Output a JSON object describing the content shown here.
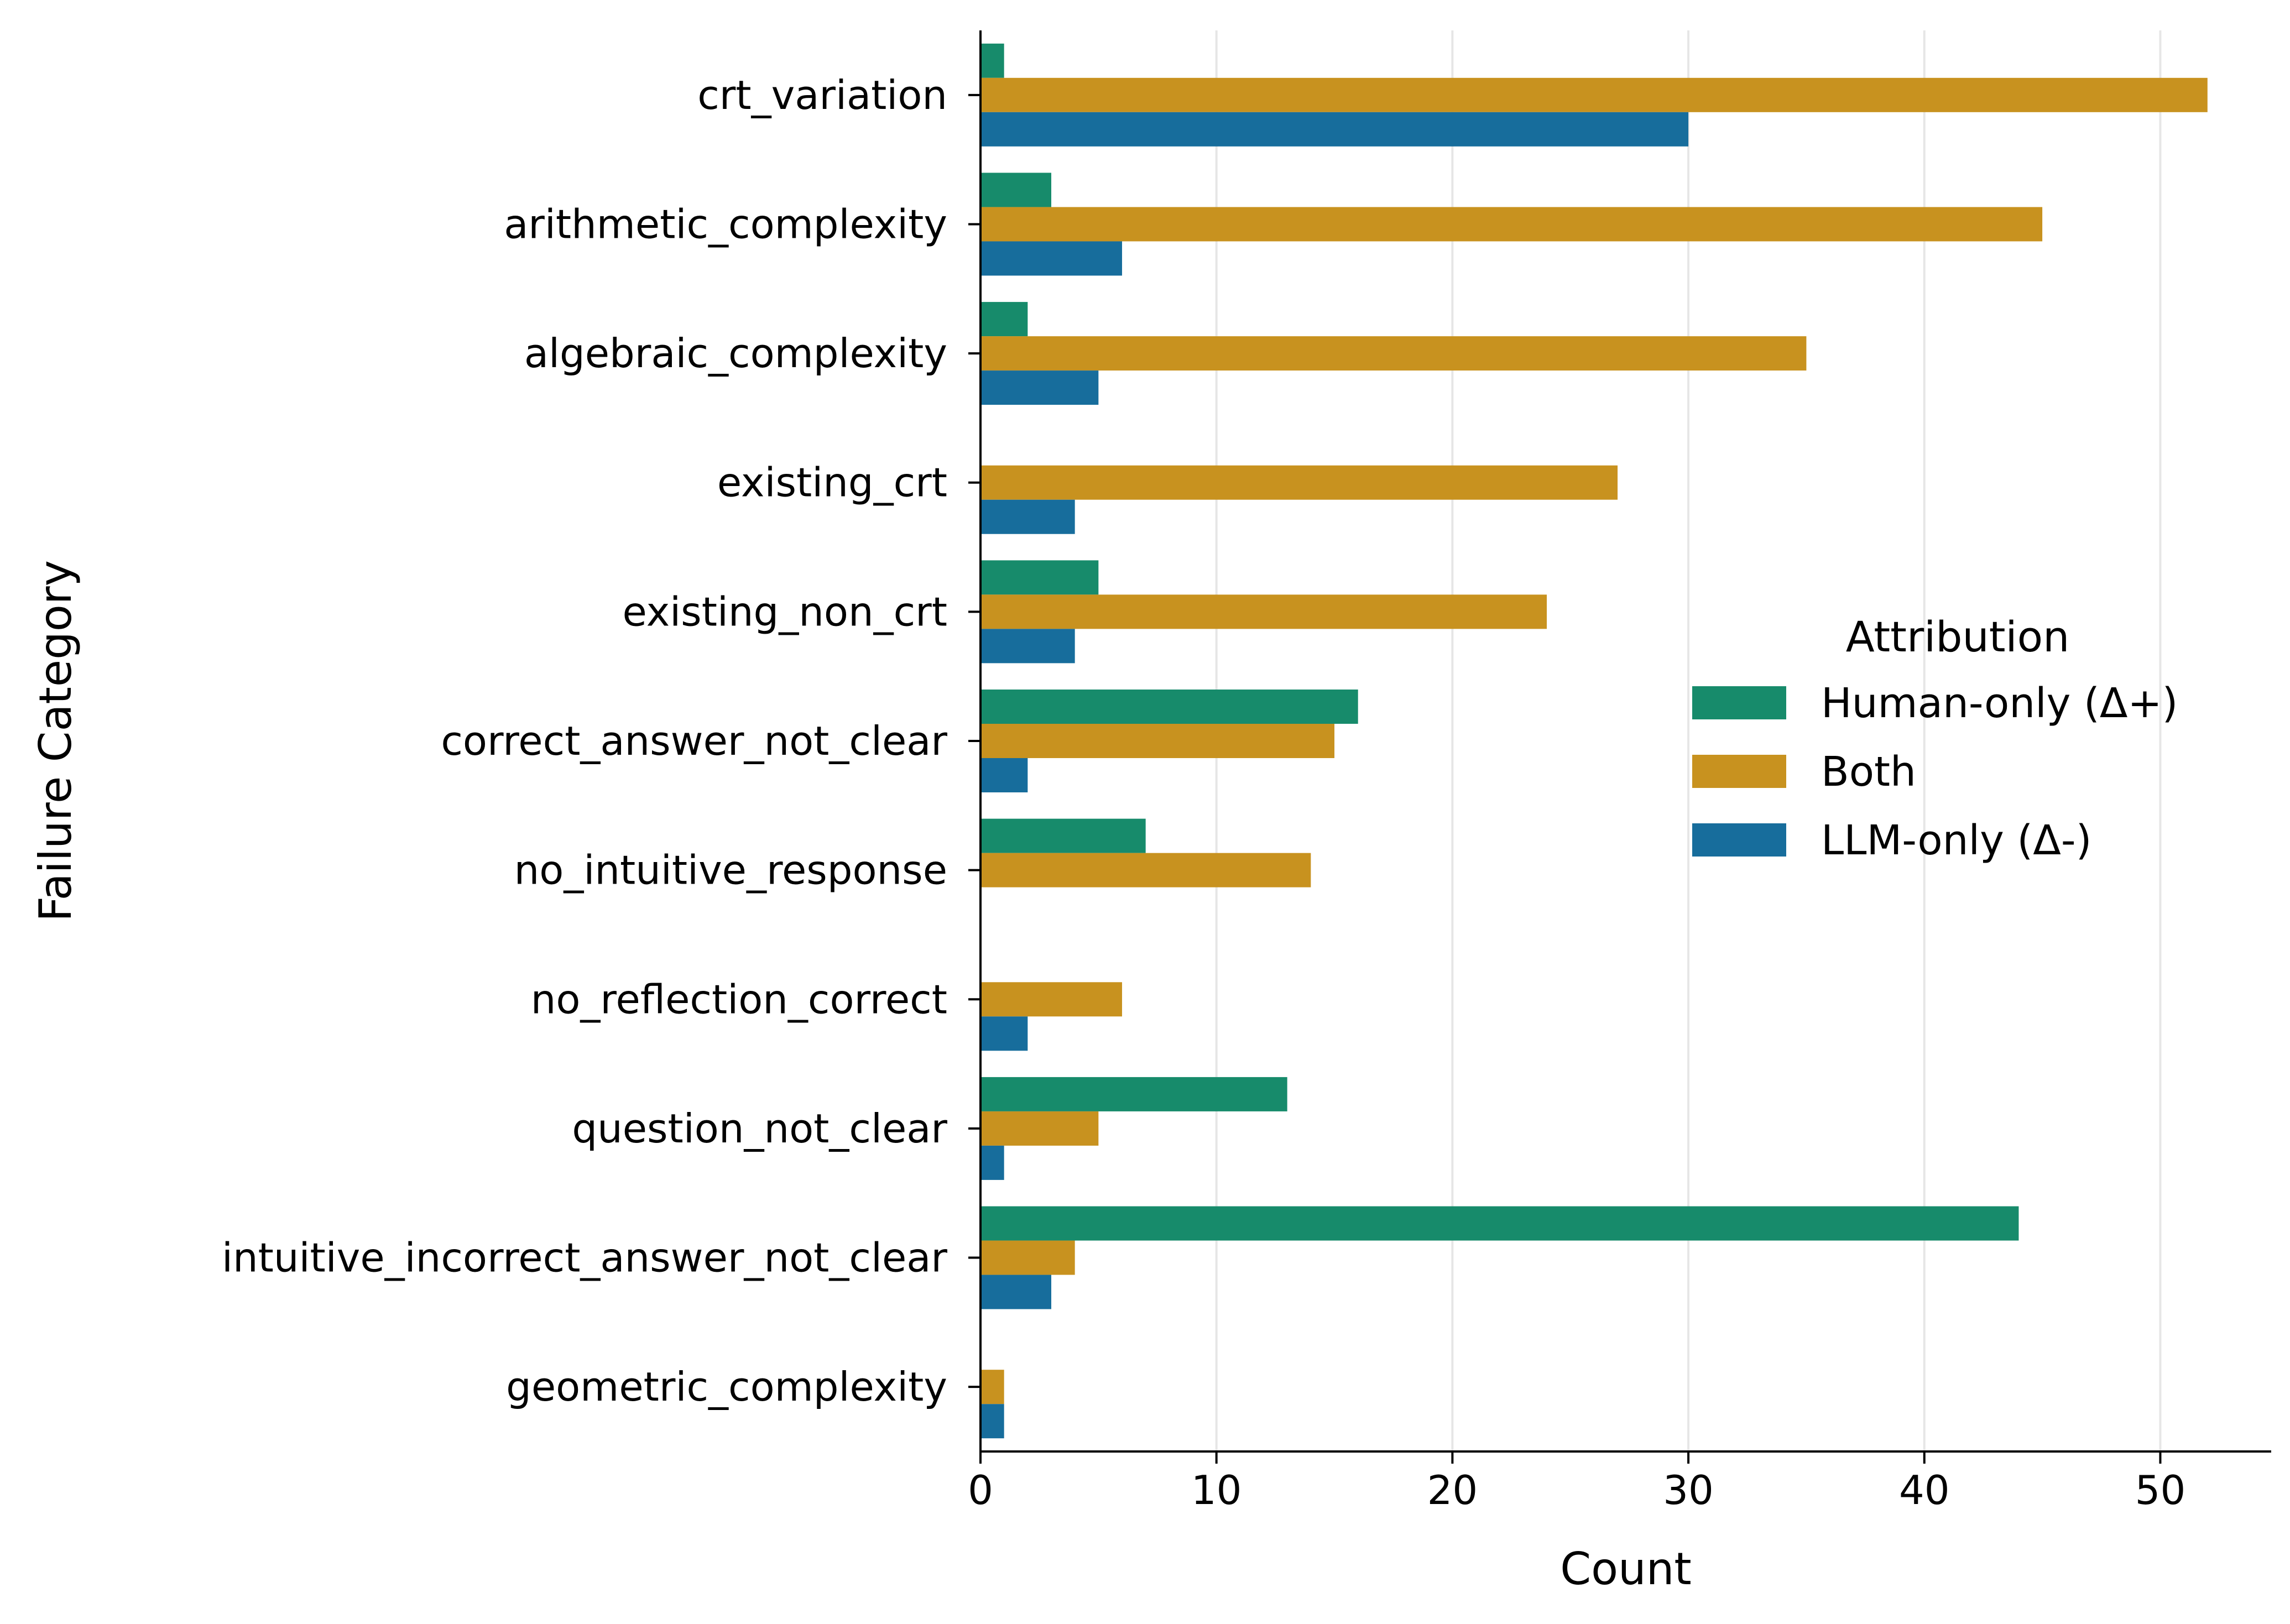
{
  "chart_data": {
    "type": "bar",
    "orientation": "horizontal",
    "title": "",
    "xlabel": "Count",
    "ylabel": "Failure Category",
    "xlim": [
      0,
      54.7
    ],
    "xticks": [
      0,
      10,
      20,
      30,
      40,
      50
    ],
    "grid": "vertical",
    "categories": [
      "crt_variation",
      "arithmetic_complexity",
      "algebraic_complexity",
      "existing_crt",
      "existing_non_crt",
      "correct_answer_not_clear",
      "no_intuitive_response",
      "no_reflection_correct",
      "question_not_clear",
      "intuitive_incorrect_answer_not_clear",
      "geometric_complexity"
    ],
    "series": [
      {
        "name": "Human-only (Δ+)",
        "color": "#178b6b",
        "values": [
          1,
          3,
          2,
          0,
          5,
          16,
          7,
          0,
          13,
          44,
          0
        ]
      },
      {
        "name": "Both",
        "color": "#c8921f",
        "values": [
          52,
          45,
          35,
          27,
          24,
          15,
          14,
          6,
          5,
          4,
          1
        ]
      },
      {
        "name": "LLM-only (Δ-)",
        "color": "#176d9c",
        "values": [
          30,
          6,
          5,
          4,
          4,
          2,
          0,
          2,
          1,
          3,
          1
        ]
      }
    ],
    "legend": {
      "title": "Attribution",
      "position": "center-right"
    }
  }
}
